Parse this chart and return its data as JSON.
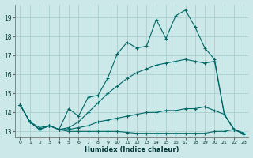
{
  "xlabel": "Humidex (Indice chaleur)",
  "bg_color": "#cce8e8",
  "grid_color": "#aacfcf",
  "line_color": "#006666",
  "xlim": [
    -0.5,
    23.5
  ],
  "ylim": [
    12.7,
    19.7
  ],
  "yticks": [
    13,
    14,
    15,
    16,
    17,
    18,
    19
  ],
  "xticks": [
    0,
    1,
    2,
    3,
    4,
    5,
    6,
    7,
    8,
    9,
    10,
    11,
    12,
    13,
    14,
    15,
    16,
    17,
    18,
    19,
    20,
    21,
    22,
    23
  ],
  "series": [
    [
      14.4,
      13.5,
      13.1,
      13.3,
      13.1,
      14.2,
      13.8,
      14.8,
      14.9,
      15.8,
      17.1,
      17.7,
      17.4,
      17.5,
      18.9,
      17.9,
      19.1,
      19.4,
      18.5,
      17.4,
      16.8,
      13.9,
      13.1,
      12.9
    ],
    [
      14.4,
      13.5,
      13.2,
      13.3,
      13.1,
      13.2,
      13.5,
      14.0,
      14.5,
      15.0,
      15.4,
      15.8,
      16.1,
      16.3,
      16.5,
      16.6,
      16.7,
      16.8,
      16.7,
      16.6,
      16.7,
      13.9,
      13.1,
      12.9
    ],
    [
      14.4,
      13.5,
      13.1,
      13.3,
      13.1,
      13.1,
      13.2,
      13.3,
      13.5,
      13.6,
      13.7,
      13.8,
      13.9,
      14.0,
      14.0,
      14.1,
      14.1,
      14.2,
      14.2,
      14.3,
      14.1,
      13.9,
      13.1,
      12.9
    ],
    [
      14.4,
      13.5,
      13.1,
      13.3,
      13.1,
      13.0,
      13.0,
      13.0,
      13.0,
      13.0,
      13.0,
      12.95,
      12.9,
      12.9,
      12.9,
      12.9,
      12.9,
      12.9,
      12.9,
      12.9,
      13.0,
      13.0,
      13.1,
      12.85
    ]
  ]
}
